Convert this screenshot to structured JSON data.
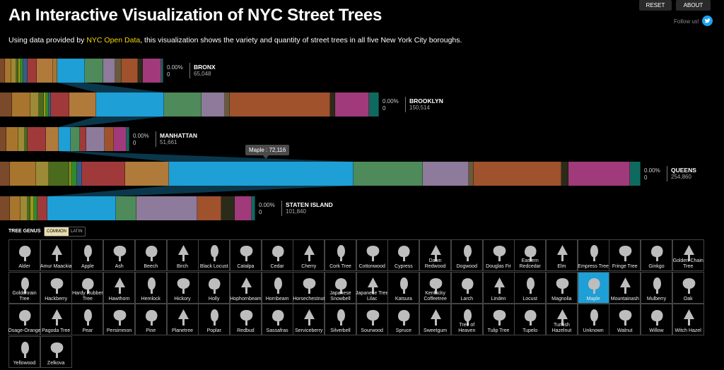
{
  "header": {
    "title": "An Interactive Visualization of NYC Street Trees",
    "subtitle_before": "Using data provided by ",
    "subtitle_link": "NYC Open Data",
    "subtitle_after": ", this visualization shows the variety and quantity of street trees in all five New York City boroughs.",
    "reset_label": "RESET",
    "about_label": "ABOUT",
    "follow_label": "Follow us!"
  },
  "tooltip": "Maple : 72,116",
  "legend": {
    "title": "TREE GENUS",
    "toggle_common": "COMMON",
    "toggle_latin": "LATIN",
    "selected": "Maple",
    "genera": [
      "Alder",
      "Amur Maackia",
      "Apple",
      "Ash",
      "Beech",
      "Birch",
      "Black Locust",
      "Catalpa",
      "Cedar",
      "Cherry",
      "Cork Tree",
      "Cottonwood",
      "Cypress",
      "Dawn Redwood",
      "Dogwood",
      "Douglas Fir",
      "Eastern Redcedar",
      "Elm",
      "Empress Tree",
      "Fringe Tree",
      "Ginkgo",
      "Golden-Chain Tree",
      "Goldenrain Tree",
      "Hackberry",
      "Hardy Rubber Tree",
      "Hawthorn",
      "Hemlock",
      "Hickory",
      "Holly",
      "Hophornbeam",
      "Hornbeam",
      "Horsechestnut",
      "Japanese Snowbell",
      "Japanese Tree Lilac",
      "Katsura",
      "Kentucky Coffeetree",
      "Larch",
      "Linden",
      "Locust",
      "Magnolia",
      "Maple",
      "Mountainash",
      "Mulberry",
      "Oak",
      "Osage-Orange",
      "Pagoda Tree",
      "Pear",
      "Persimmon",
      "Pine",
      "Planetree",
      "Poplar",
      "Redbud",
      "Sassafras",
      "Serviceberry",
      "Silverbell",
      "Sourwood",
      "Spruce",
      "Sweetgum",
      "Tree of Heaven",
      "Tulip Tree",
      "Tupelo",
      "Turkish Hazelnut",
      "Unknown",
      "Walnut",
      "Willow",
      "Witch Hazel",
      "Yellowood",
      "Zelkova"
    ]
  },
  "colors": {
    "maple": "#1e9fd6",
    "accent": "#f4d60c",
    "palette": [
      "#7a4a2a",
      "#a8752e",
      "#9c8a36",
      "#4a6a1e",
      "#2d8a2d",
      "#6a2a6a",
      "#9a9a1a",
      "#3a5a8a",
      "#b07a3a",
      "#1e9fd6",
      "#4e8a5a",
      "#8e7a9a",
      "#a0522d",
      "#2b2b1a",
      "#a03a7a",
      "#0e6a5e"
    ]
  },
  "boroughs": [
    {
      "name": "BRONX",
      "total": "65,048",
      "pct": "0.00%",
      "count": "0",
      "segments": [
        {
          "color": "#7a4a2a",
          "value": 2
        },
        {
          "color": "#a8752e",
          "value": 3
        },
        {
          "color": "#9c8a36",
          "value": 2
        },
        {
          "color": "#4a6a1e",
          "value": 1
        },
        {
          "color": "#9a9a1a",
          "value": 1
        },
        {
          "color": "#2d8a2d",
          "value": 1
        },
        {
          "color": "#3a5a8a",
          "value": 2
        },
        {
          "color": "#a03a3a",
          "value": 4
        },
        {
          "color": "#b07a3a",
          "value": 7
        },
        {
          "color": "#a8752e",
          "value": 2
        },
        {
          "color": "#1e9fd6",
          "value": 12
        },
        {
          "color": "#4e8a5a",
          "value": 8
        },
        {
          "color": "#8e7a9a",
          "value": 5
        },
        {
          "color": "#6a5a3a",
          "value": 3
        },
        {
          "color": "#a0522d",
          "value": 7
        },
        {
          "color": "#2b2b1a",
          "value": 2
        },
        {
          "color": "#a03a7a",
          "value": 8
        },
        {
          "color": "#0e6a5e",
          "value": 1
        }
      ]
    },
    {
      "name": "BROOKLYN",
      "total": "150,514",
      "pct": "0.00%",
      "count": "0",
      "segments": [
        {
          "color": "#7a4a2a",
          "value": 7
        },
        {
          "color": "#a8752e",
          "value": 11
        },
        {
          "color": "#9c8a36",
          "value": 5
        },
        {
          "color": "#4a6a1e",
          "value": 3
        },
        {
          "color": "#9a9a1a",
          "value": 1
        },
        {
          "color": "#2d8a2d",
          "value": 2
        },
        {
          "color": "#3a5a8a",
          "value": 1
        },
        {
          "color": "#a03a3a",
          "value": 11
        },
        {
          "color": "#b07a3a",
          "value": 16
        },
        {
          "color": "#1e9fd6",
          "value": 40
        },
        {
          "color": "#4e8a5a",
          "value": 22
        },
        {
          "color": "#8e7a9a",
          "value": 14
        },
        {
          "color": "#6a5a3a",
          "value": 3
        },
        {
          "color": "#a0522d",
          "value": 59
        },
        {
          "color": "#2b2b1a",
          "value": 3
        },
        {
          "color": "#a03a7a",
          "value": 20
        },
        {
          "color": "#0e6a5e",
          "value": 6
        }
      ]
    },
    {
      "name": "MANHATTAN",
      "total": "51,661",
      "pct": "0.00%",
      "count": "0",
      "segments": [
        {
          "color": "#7a4a2a",
          "value": 2
        },
        {
          "color": "#a8752e",
          "value": 4
        },
        {
          "color": "#9c8a36",
          "value": 2
        },
        {
          "color": "#4a6a1e",
          "value": 1
        },
        {
          "color": "#a03a3a",
          "value": 6
        },
        {
          "color": "#b07a3a",
          "value": 4
        },
        {
          "color": "#1e9fd6",
          "value": 4
        },
        {
          "color": "#4e8a5a",
          "value": 3
        },
        {
          "color": "#a03a3a",
          "value": 2
        },
        {
          "color": "#8e7a9a",
          "value": 6
        },
        {
          "color": "#a0522d",
          "value": 3
        },
        {
          "color": "#a03a7a",
          "value": 4
        },
        {
          "color": "#0e6a5e",
          "value": 1
        }
      ]
    },
    {
      "name": "QUEENS",
      "total": "254,860",
      "pct": "0.00%",
      "count": "0",
      "segments": [
        {
          "color": "#7a4a2a",
          "value": 4
        },
        {
          "color": "#a8752e",
          "value": 10
        },
        {
          "color": "#9c8a36",
          "value": 5
        },
        {
          "color": "#4a6a1e",
          "value": 8
        },
        {
          "color": "#9a9a1a",
          "value": 1
        },
        {
          "color": "#2d8a2d",
          "value": 2
        },
        {
          "color": "#3a5a8a",
          "value": 2
        },
        {
          "color": "#a03a3a",
          "value": 17
        },
        {
          "color": "#b07a3a",
          "value": 17
        },
        {
          "color": "#1e9fd6",
          "value": 72
        },
        {
          "color": "#4e8a5a",
          "value": 27
        },
        {
          "color": "#8e7a9a",
          "value": 18
        },
        {
          "color": "#6a5a3a",
          "value": 2
        },
        {
          "color": "#a0522d",
          "value": 34
        },
        {
          "color": "#2b2b1a",
          "value": 3
        },
        {
          "color": "#a03a7a",
          "value": 24
        },
        {
          "color": "#0e6a5e",
          "value": 4
        }
      ]
    },
    {
      "name": "STATEN ISLAND",
      "total": "101,840",
      "pct": "0.00%",
      "count": "0",
      "segments": [
        {
          "color": "#7a4a2a",
          "value": 3
        },
        {
          "color": "#a8752e",
          "value": 3
        },
        {
          "color": "#9c8a36",
          "value": 2
        },
        {
          "color": "#4a6a1e",
          "value": 1
        },
        {
          "color": "#9a9a1a",
          "value": 1
        },
        {
          "color": "#2d8a2d",
          "value": 1
        },
        {
          "color": "#a03a3a",
          "value": 3
        },
        {
          "color": "#1e9fd6",
          "value": 20
        },
        {
          "color": "#4e8a5a",
          "value": 6
        },
        {
          "color": "#8e7a9a",
          "value": 18
        },
        {
          "color": "#a0522d",
          "value": 7
        },
        {
          "color": "#2b2b1a",
          "value": 4
        },
        {
          "color": "#a03a7a",
          "value": 5
        },
        {
          "color": "#0e6a5e",
          "value": 1
        }
      ]
    }
  ]
}
